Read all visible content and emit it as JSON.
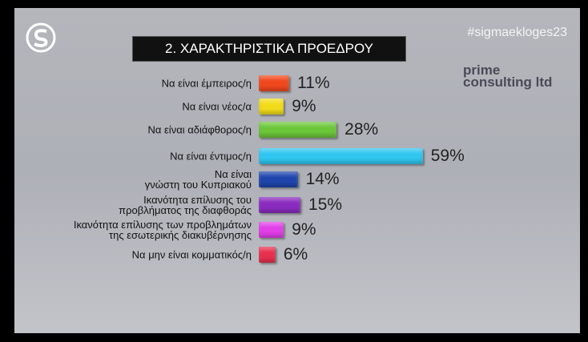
{
  "chart_data": {
    "type": "bar",
    "orientation": "horizontal",
    "title": "2. ΧΑΡΑΚΤΗΡΙΣΤΙΚΑ ΠΡΟΕΔΡΟΥ",
    "hashtag": "#sigmaekloges23",
    "source": "prime\nconsulting ltd",
    "categories": [
      "Να είναι έμπειρος/η",
      "Να είναι νέος/α",
      "Να είναι αδιάφθορος/η",
      "Να είναι έντιμος/η",
      "Να είναι\nγνώστη του Κυπριακού",
      "Ικανότητα επίλυσης του\nπροβλήματος της διαφθοράς",
      "Ικανότητα επίλυσης των προβλημάτων\nτης εσωτερικής διακυβέρνησης",
      "Να μην είναι κομματικός/η"
    ],
    "values": [
      11,
      9,
      28,
      59,
      14,
      15,
      9,
      6
    ],
    "value_labels": [
      "11%",
      "9%",
      "28%",
      "59%",
      "14%",
      "15%",
      "9%",
      "6%"
    ],
    "colors": [
      "#f0481c",
      "#f2dc1a",
      "#6cc63a",
      "#2fc6f0",
      "#1f45ad",
      "#8a2bbf",
      "#e23ee8",
      "#e8304e"
    ]
  }
}
